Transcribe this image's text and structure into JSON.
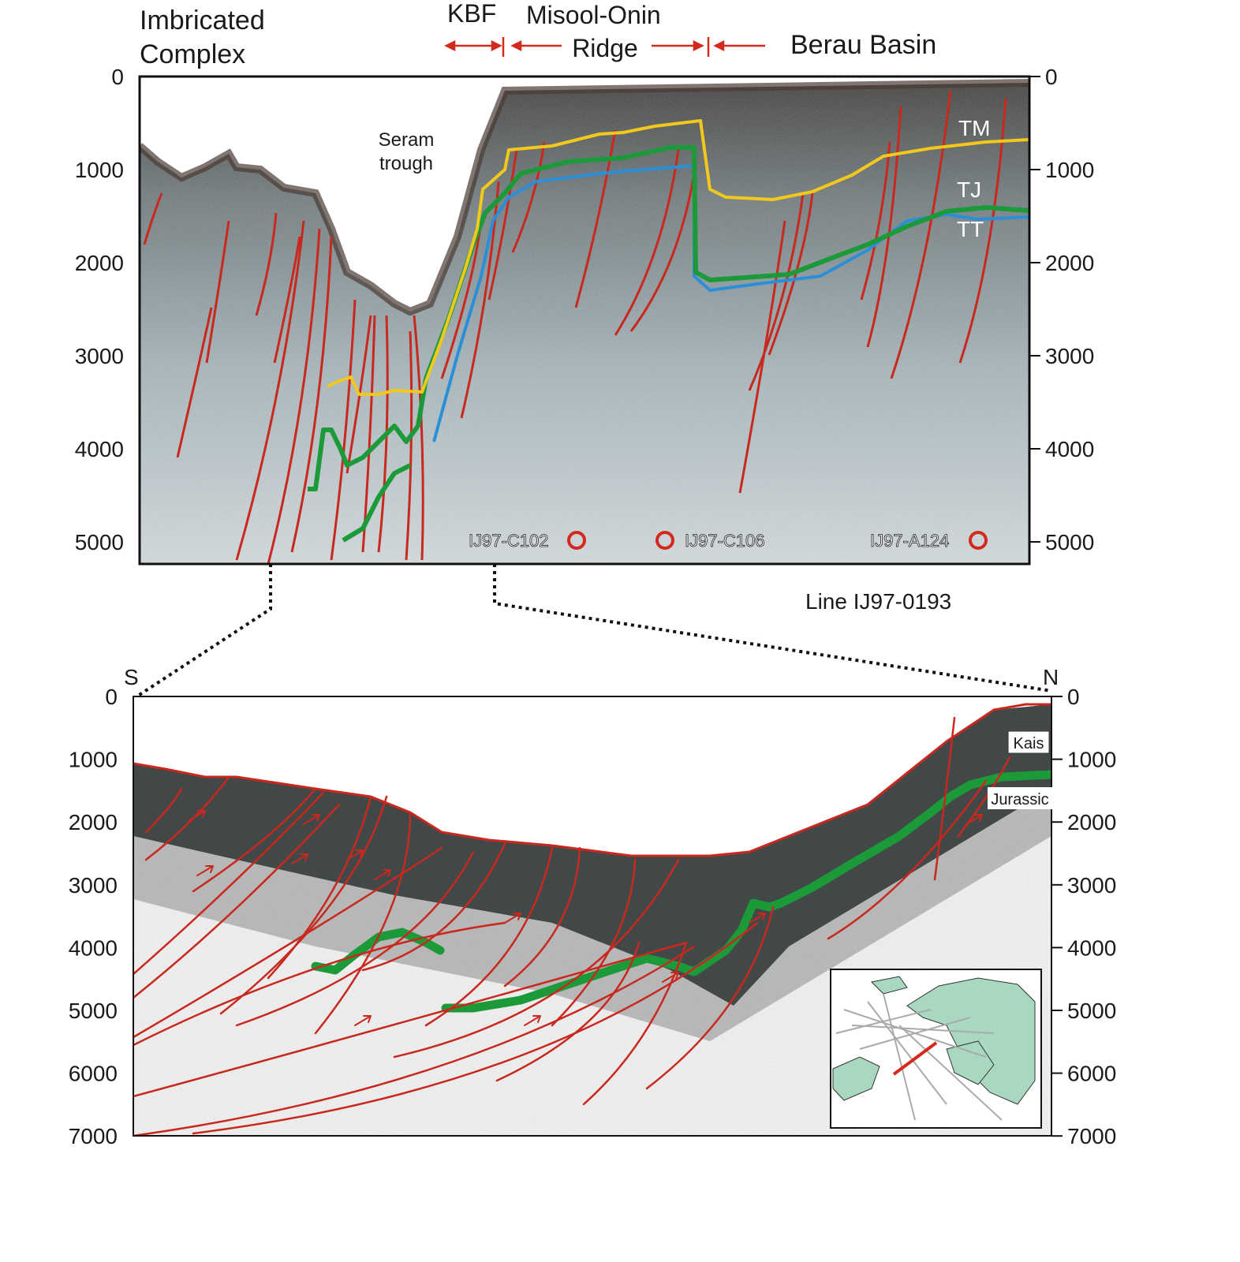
{
  "top_panel": {
    "header_left": [
      "Imbricated",
      "Complex"
    ],
    "kbf": "KBF",
    "ridge": [
      "Misool-Onin",
      "Ridge"
    ],
    "basin": "Berau Basin",
    "trough": [
      "Seram",
      "trough"
    ],
    "horizons": [
      "TM",
      "TJ",
      "TT"
    ],
    "wells": [
      "IJ97-C102",
      "IJ97-C106",
      "IJ97-A124"
    ],
    "line_label": "Line IJ97-0193",
    "yticks": [
      0,
      1000,
      2000,
      3000,
      4000,
      5000
    ]
  },
  "bottom_panel": {
    "south": "S",
    "north": "N",
    "horizons": [
      "Kais",
      "Jurassic"
    ],
    "yticks": [
      0,
      1000,
      2000,
      3000,
      4000,
      5000,
      6000,
      7000
    ]
  }
}
